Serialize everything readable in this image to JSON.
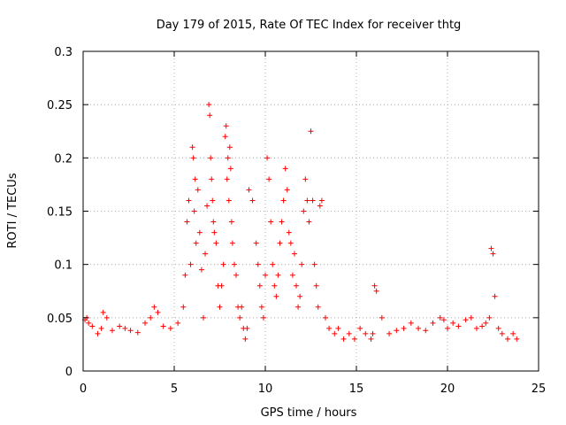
{
  "chart_data": {
    "type": "scatter",
    "title": "Day 179 of 2015, Rate Of TEC Index for receiver thtg",
    "xlabel": "GPS time / hours",
    "ylabel": "ROTI / TECUs",
    "xlim": [
      0,
      25
    ],
    "ylim": [
      0,
      0.3
    ],
    "x_ticks": [
      "0",
      "5",
      "10",
      "15",
      "20",
      "25"
    ],
    "y_ticks": [
      "0",
      "0.05",
      "0.1",
      "0.15",
      "0.2",
      "0.25",
      "0.3"
    ],
    "grid": true,
    "marker": "plus",
    "color": "#ff0000",
    "series": [
      {
        "x": [
          0.1,
          0.2,
          0.3,
          0.5,
          0.8,
          1.0,
          1.1,
          1.3,
          1.6,
          2.0,
          2.3,
          2.6,
          3.0,
          3.4,
          3.7,
          3.9,
          4.1,
          4.4,
          4.8,
          5.2,
          5.5,
          5.6,
          5.7,
          5.8,
          5.9,
          6.0,
          6.05,
          6.1,
          6.15,
          6.2,
          6.3,
          6.4,
          6.5,
          6.6,
          6.7,
          6.8,
          6.9,
          6.95,
          7.0,
          7.05,
          7.1,
          7.15,
          7.2,
          7.3,
          7.4,
          7.5,
          7.6,
          7.7,
          7.8,
          7.85,
          7.9,
          7.95,
          8.0,
          8.05,
          8.1,
          8.15,
          8.2,
          8.3,
          8.4,
          8.5,
          8.6,
          8.7,
          8.8,
          8.9,
          9.0,
          9.1,
          9.3,
          9.5,
          9.6,
          9.7,
          9.8,
          9.9,
          10.0,
          10.1,
          10.2,
          10.3,
          10.4,
          10.5,
          10.6,
          10.7,
          10.8,
          10.9,
          11.0,
          11.1,
          11.2,
          11.3,
          11.4,
          11.5,
          11.6,
          11.7,
          11.8,
          11.9,
          12.0,
          12.1,
          12.2,
          12.3,
          12.4,
          12.5,
          12.6,
          12.7,
          12.8,
          12.9,
          13.0,
          13.1,
          13.3,
          13.5,
          13.8,
          14.0,
          14.3,
          14.6,
          14.9,
          15.2,
          15.5,
          15.8,
          15.9,
          16.0,
          16.1,
          16.4,
          16.8,
          17.2,
          17.6,
          18.0,
          18.4,
          18.8,
          19.2,
          19.6,
          19.8,
          20.0,
          20.3,
          20.6,
          21.0,
          21.3,
          21.6,
          21.9,
          22.1,
          22.3,
          22.4,
          22.5,
          22.6,
          22.8,
          23.0,
          23.3,
          23.6,
          23.8
        ],
        "y": [
          0.048,
          0.05,
          0.045,
          0.042,
          0.035,
          0.04,
          0.055,
          0.05,
          0.038,
          0.042,
          0.04,
          0.038,
          0.036,
          0.045,
          0.05,
          0.06,
          0.055,
          0.042,
          0.04,
          0.045,
          0.06,
          0.09,
          0.14,
          0.16,
          0.1,
          0.21,
          0.2,
          0.15,
          0.18,
          0.12,
          0.17,
          0.13,
          0.095,
          0.05,
          0.11,
          0.155,
          0.25,
          0.24,
          0.2,
          0.18,
          0.16,
          0.14,
          0.13,
          0.12,
          0.08,
          0.06,
          0.08,
          0.1,
          0.22,
          0.23,
          0.18,
          0.2,
          0.16,
          0.21,
          0.19,
          0.14,
          0.12,
          0.1,
          0.09,
          0.06,
          0.05,
          0.06,
          0.04,
          0.03,
          0.04,
          0.17,
          0.16,
          0.12,
          0.1,
          0.08,
          0.06,
          0.05,
          0.09,
          0.2,
          0.18,
          0.14,
          0.1,
          0.08,
          0.07,
          0.09,
          0.12,
          0.14,
          0.16,
          0.19,
          0.17,
          0.13,
          0.12,
          0.09,
          0.11,
          0.08,
          0.06,
          0.07,
          0.1,
          0.15,
          0.18,
          0.16,
          0.14,
          0.225,
          0.16,
          0.1,
          0.08,
          0.06,
          0.155,
          0.16,
          0.05,
          0.04,
          0.035,
          0.04,
          0.03,
          0.035,
          0.03,
          0.04,
          0.035,
          0.03,
          0.035,
          0.08,
          0.075,
          0.05,
          0.035,
          0.038,
          0.04,
          0.045,
          0.04,
          0.038,
          0.045,
          0.05,
          0.048,
          0.04,
          0.045,
          0.042,
          0.048,
          0.05,
          0.04,
          0.042,
          0.045,
          0.05,
          0.115,
          0.11,
          0.07,
          0.04,
          0.035,
          0.03,
          0.035,
          0.03
        ]
      }
    ]
  }
}
